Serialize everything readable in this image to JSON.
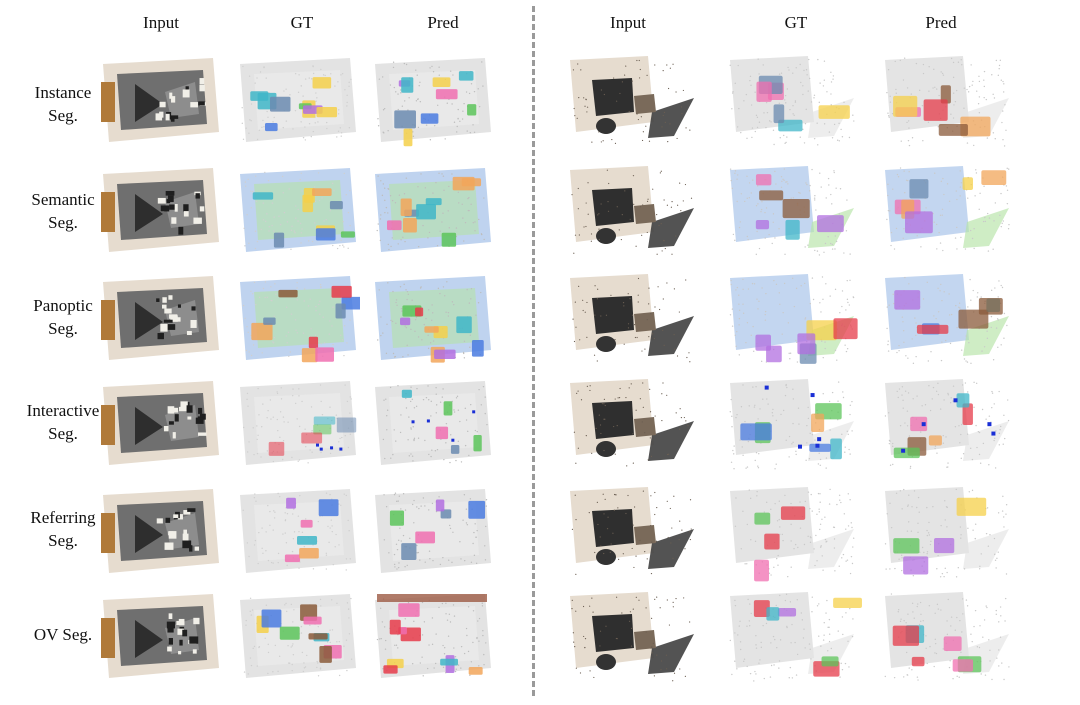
{
  "columns": [
    {
      "label": "Input",
      "variant": "photo"
    },
    {
      "label": "GT",
      "variant": "gt"
    },
    {
      "label": "Pred",
      "variant": "pred"
    },
    {
      "label": "Input",
      "variant": "photo"
    },
    {
      "label": "GT",
      "variant": "gt"
    },
    {
      "label": "Pred",
      "variant": "pred"
    }
  ],
  "rows": [
    {
      "line1": "Instance",
      "line2": "Seg.",
      "task": "instance"
    },
    {
      "line1": "Semantic",
      "line2": "Seg.",
      "task": "semantic"
    },
    {
      "line1": "Panoptic",
      "line2": "Seg.",
      "task": "panoptic"
    },
    {
      "line1": "Interactive",
      "line2": "Seg.",
      "task": "interactive"
    },
    {
      "line1": "Referring",
      "line2": "Seg.",
      "task": "referring"
    },
    {
      "line1": "OV Seg.",
      "line2": "",
      "task": "ov"
    }
  ],
  "colors": {
    "divider": "#9a9a9a",
    "background_points": "#d9d9d9",
    "semantic_wall": "#a9c4ea",
    "semantic_floor": "#b6e3a6",
    "input_wall": "#e6dccf",
    "input_floor": "#3a3a3a",
    "palette": [
      "#f2a65a",
      "#4a7be0",
      "#e63b4a",
      "#5cc45a",
      "#b16fe0",
      "#f06fb0",
      "#3fb6c8",
      "#f5d04a",
      "#8a5a3a",
      "#6b8bb0"
    ]
  }
}
